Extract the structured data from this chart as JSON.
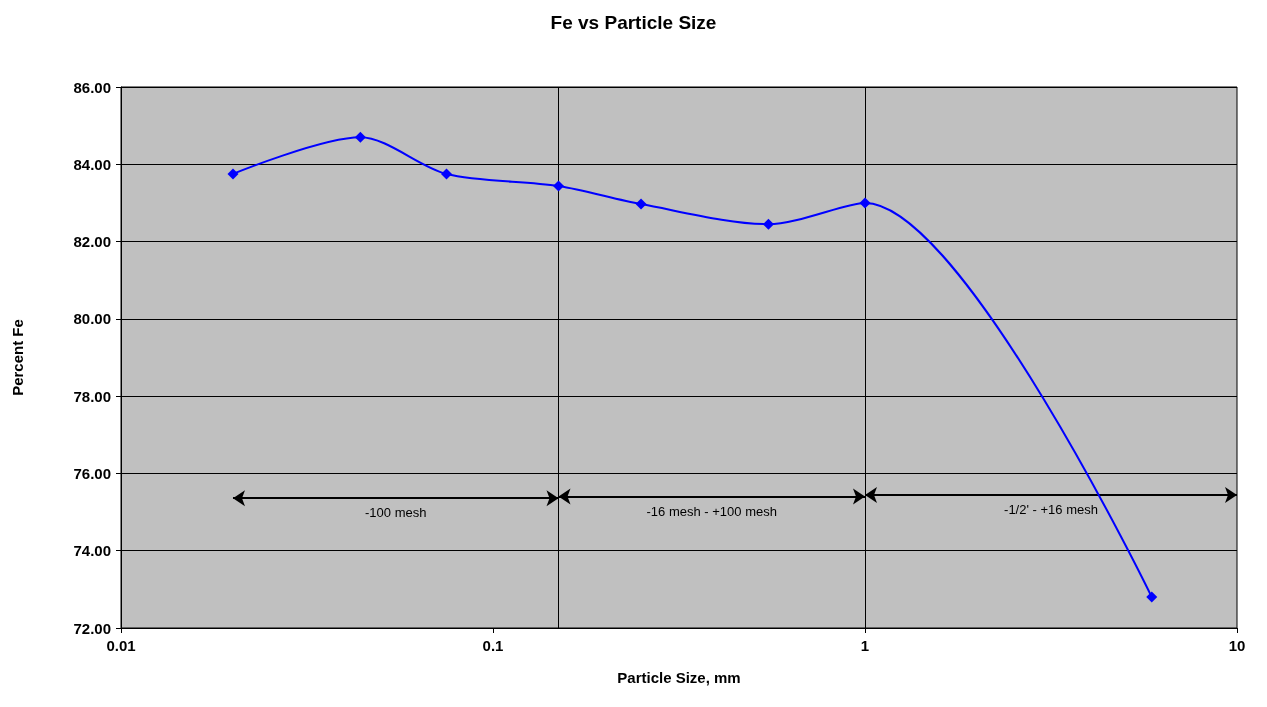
{
  "chart_data": {
    "type": "line",
    "title": "Fe vs Particle Size",
    "xlabel": "Particle Size, mm",
    "ylabel": "Percent Fe",
    "x": [
      0.02,
      0.044,
      0.075,
      0.15,
      0.25,
      0.55,
      1,
      5.9
    ],
    "series": [
      {
        "color": "#0000ff",
        "values": [
          83.75,
          84.7,
          83.75,
          83.44,
          82.97,
          82.45,
          83.0,
          72.8
        ]
      }
    ],
    "log": "x",
    "xlim": [
      0.01,
      10
    ],
    "xticks": [
      0.01,
      0.1,
      1,
      10
    ],
    "ylim": [
      72,
      86
    ],
    "yticks": [
      {
        "value": 72,
        "label": "72.00"
      },
      {
        "value": 74,
        "label": "74.00"
      },
      {
        "value": 76,
        "label": "76.00"
      },
      {
        "value": 78,
        "label": "78.00"
      },
      {
        "value": 80,
        "label": "80.00"
      },
      {
        "value": 82,
        "label": "82.00"
      },
      {
        "value": 84,
        "label": "84.00"
      },
      {
        "value": 86,
        "label": "86.00"
      }
    ],
    "grid": "y",
    "marker": "diamond",
    "line_style": "solid",
    "ref_lines": [
      {
        "axis": "x",
        "value": 0.15,
        "color": "#000000"
      },
      {
        "axis": "x",
        "value": 1,
        "color": "#000000"
      }
    ],
    "annotations": [
      "-100 mesh",
      "-16 mesh - +100 mesh",
      "-1/2' - +16 mesh"
    ]
  }
}
